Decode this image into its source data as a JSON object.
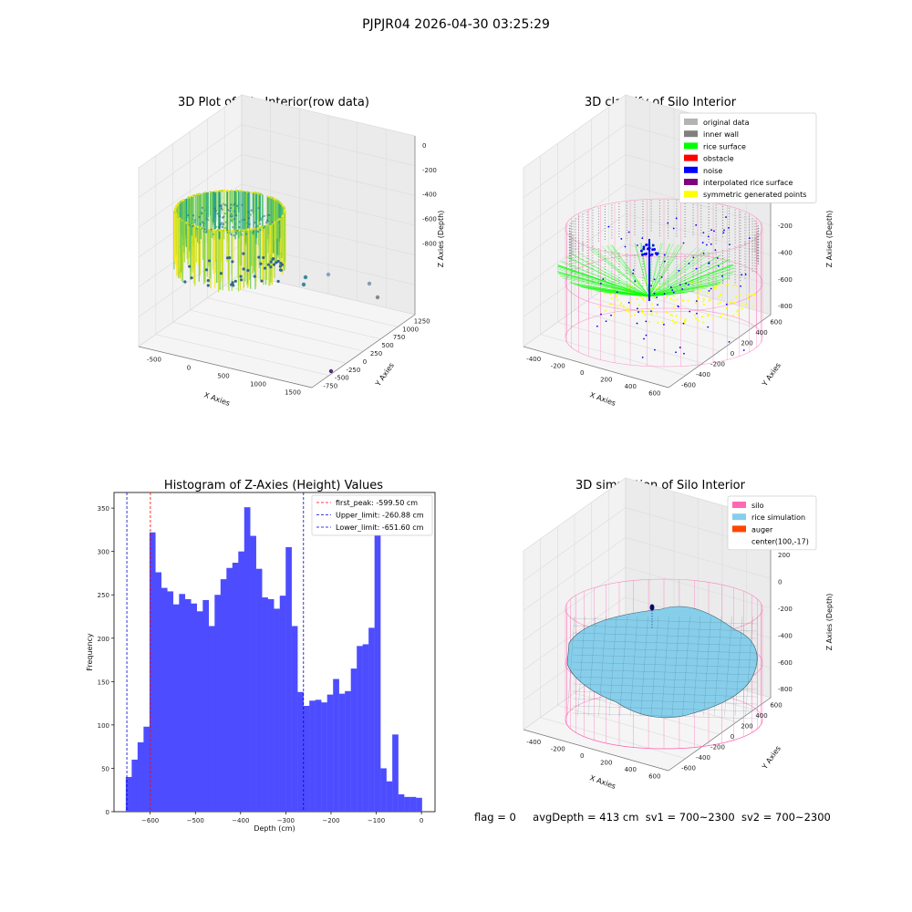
{
  "figure_title": "PJPJR04 2026-04-30 03:25:29",
  "footer": {
    "flag": "flag = 0",
    "avg_depth": "avgDepth = 413 cm",
    "sv1": "sv1 = 700~2300",
    "sv2": "sv2 = 700~2300"
  },
  "colors": {
    "original_data": "#b3b3b3",
    "inner_wall": "#808080",
    "rice_surface": "#00ff00",
    "obstacle": "#ff0000",
    "noise": "#0000ff",
    "interpolated_rice_surface": "#800080",
    "symmetric_generated_points": "#ffff00",
    "silo": "#ff69b4",
    "rice_simulation": "#87ceeb",
    "auger": "#ff4500",
    "histogram_bar": "#4d4dff"
  },
  "chart_data": [
    {
      "type": "scatter",
      "title": "3D Plot of Silo Interior(row data)",
      "projection": "3d",
      "xlabel": "X Axies",
      "ylabel": "Y Axies",
      "zlabel": "Z Axies (Depth)",
      "x_ticks": [
        "-500",
        "0",
        "500",
        "1000",
        "1500"
      ],
      "y_ticks": [
        "-750",
        "-500",
        "-250",
        "0",
        "250",
        "500",
        "750",
        "1000",
        "1250"
      ],
      "z_ticks": [
        "0",
        "-200",
        "-400",
        "-600",
        "-800"
      ],
      "colormap": "viridis"
    },
    {
      "type": "scatter",
      "title": "3D classify of Silo Interior",
      "projection": "3d",
      "xlabel": "X Axies",
      "ylabel": "Y Axies",
      "zlabel": "Z Axies (Depth)",
      "x_ticks": [
        "-400",
        "-200",
        "0",
        "200",
        "400",
        "600"
      ],
      "y_ticks": [
        "-600",
        "-400",
        "-200",
        "0",
        "200",
        "400",
        "600"
      ],
      "z_ticks": [
        "400",
        "200",
        "0",
        "-200",
        "-400",
        "-600",
        "-800"
      ],
      "legend": [
        "original data",
        "inner wall",
        "rice surface",
        "obstacle",
        "noise",
        "interpolated rice surface",
        "symmetric generated points"
      ],
      "legend_position": "top-right"
    },
    {
      "type": "bar",
      "title": "Histogram of Z-Axies (Height) Values",
      "xlabel": "Depth (cm)",
      "ylabel": "Frequency",
      "xlim": [
        -680,
        30
      ],
      "ylim": [
        0,
        368
      ],
      "x_ticks": [
        -600,
        -500,
        -400,
        -300,
        -200,
        -100,
        0
      ],
      "y_ticks": [
        0,
        50,
        100,
        150,
        200,
        250,
        300,
        350
      ],
      "bin_start": -654,
      "bin_width": 13.1,
      "values": [
        40,
        60,
        80,
        98,
        322,
        276,
        258,
        254,
        239,
        251,
        245,
        240,
        231,
        244,
        214,
        250,
        268,
        281,
        287,
        300,
        351,
        318,
        280,
        247,
        245,
        234,
        249,
        305,
        214,
        138,
        122,
        128,
        129,
        126,
        135,
        153,
        136,
        139,
        165,
        191,
        193,
        212,
        340,
        50,
        35,
        89,
        20,
        17,
        17,
        16
      ],
      "lines": [
        {
          "label": "first_peak: -599.50 cm",
          "value": -599.5,
          "color": "#ff0000"
        },
        {
          "label": "Upper_limit: -260.88 cm",
          "value": -260.88,
          "color": "#0000cc"
        },
        {
          "label": "Lower_limit: -651.60 cm",
          "value": -651.6,
          "color": "#0000cc"
        }
      ],
      "legend_position": "top-right"
    },
    {
      "type": "surface",
      "title": "3D simulation of Silo Interior",
      "projection": "3d",
      "xlabel": "X Axies",
      "ylabel": "Y Axies",
      "zlabel": "Z Axies (Depth)",
      "x_ticks": [
        "-400",
        "-200",
        "0",
        "200",
        "400",
        "600"
      ],
      "y_ticks": [
        "-600",
        "-400",
        "-200",
        "0",
        "200",
        "400",
        "600"
      ],
      "z_ticks": [
        "400",
        "200",
        "0",
        "-200",
        "-400",
        "-600",
        "-800"
      ],
      "legend": [
        "silo",
        "rice simulation",
        "auger",
        "center(100,-17)"
      ],
      "legend_position": "top-right"
    }
  ]
}
